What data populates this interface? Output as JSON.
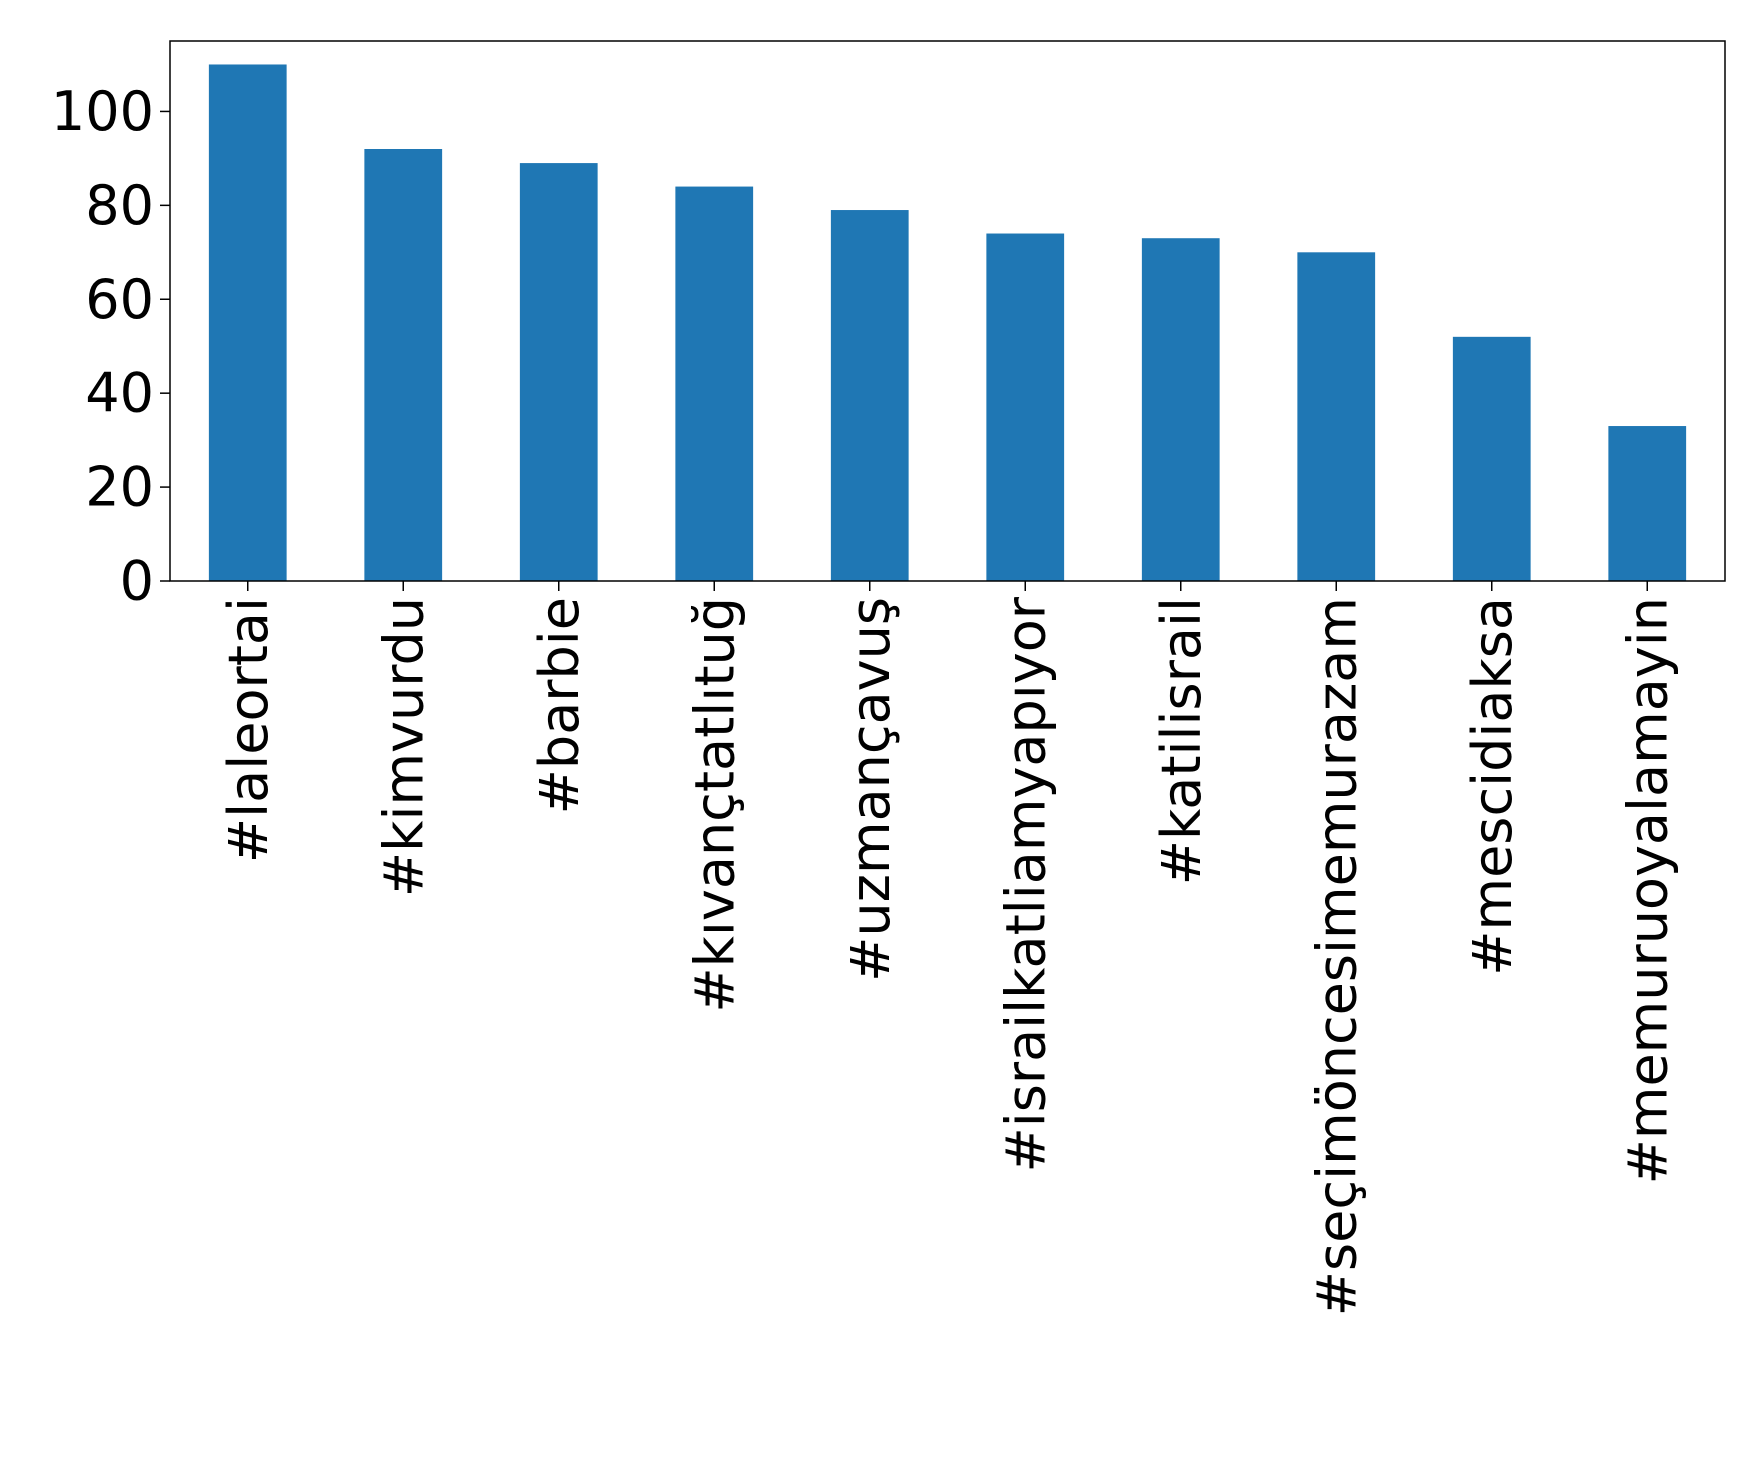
{
  "chart_data": {
    "type": "bar",
    "title": "",
    "xlabel": "",
    "ylabel": "",
    "categories": [
      "#laleortai",
      "#kimvurdu",
      "#barbie",
      "#kıvançtatlıtuğ",
      "#uzmançavuş",
      "#israilkatliamyapıyor",
      "#katilisrail",
      "#seçimöncesimemurazam",
      "#mescidiaksa",
      "#memuruoyalamayin"
    ],
    "values": [
      110,
      92,
      89,
      84,
      79,
      74,
      73,
      70,
      52,
      33
    ],
    "ylim": [
      0,
      115
    ],
    "yticks": [
      0,
      20,
      40,
      60,
      80,
      100
    ],
    "grid": false,
    "legend": "none",
    "bar_color": "#1f77b4",
    "axis_color": "#000000"
  }
}
